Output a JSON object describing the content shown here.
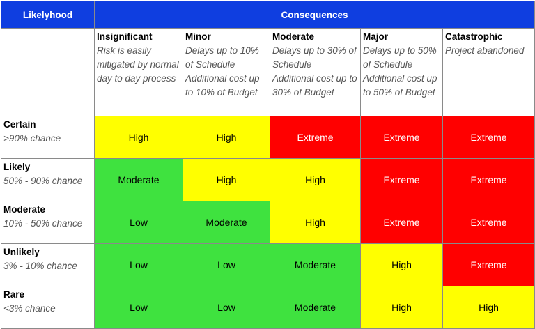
{
  "header": {
    "likelihood": "Likelyhood",
    "consequences": "Consequences"
  },
  "columns": [
    {
      "title": "Insignificant",
      "description": [
        "Risk is easily mitigated by normal day to day process"
      ]
    },
    {
      "title": "Minor",
      "description": [
        "Delays up to 10% of Schedule",
        "Additional cost up to 10% of Budget"
      ]
    },
    {
      "title": "Moderate",
      "description": [
        "Delays up to 30% of Schedule",
        "Additional cost up to 30% of Budget"
      ]
    },
    {
      "title": "Major",
      "description": [
        "Delays up to 50% of Schedule",
        "Additional cost up to 50% of Budget"
      ]
    },
    {
      "title": "Catastrophic",
      "description": [
        "Project abandoned"
      ]
    }
  ],
  "rows": [
    {
      "label": "Certain",
      "chance": ">90% chance",
      "cells": [
        "High",
        "High",
        "Extreme",
        "Extreme",
        "Extreme"
      ]
    },
    {
      "label": "Likely",
      "chance": "50% - 90% chance",
      "cells": [
        "Moderate",
        "High",
        "High",
        "Extreme",
        "Extreme"
      ]
    },
    {
      "label": "Moderate",
      "chance": "10% - 50% chance",
      "cells": [
        "Low",
        "Moderate",
        "High",
        "Extreme",
        "Extreme"
      ]
    },
    {
      "label": "Unlikely",
      "chance": "3% - 10% chance",
      "cells": [
        "Low",
        "Low",
        "Moderate",
        "High",
        "Extreme"
      ]
    },
    {
      "label": "Rare",
      "chance": "<3% chance",
      "cells": [
        "Low",
        "Low",
        "Moderate",
        "High",
        "High"
      ]
    }
  ],
  "rating_styles": {
    "Low": {
      "background": "#3fe23f",
      "color": "#000000"
    },
    "Moderate": {
      "background": "#3fe23f",
      "color": "#000000"
    },
    "High": {
      "background": "#ffff00",
      "color": "#000000"
    },
    "Extreme": {
      "background": "#ff0000",
      "color": "#ffffff"
    }
  },
  "header_color": "#0f3ee0"
}
